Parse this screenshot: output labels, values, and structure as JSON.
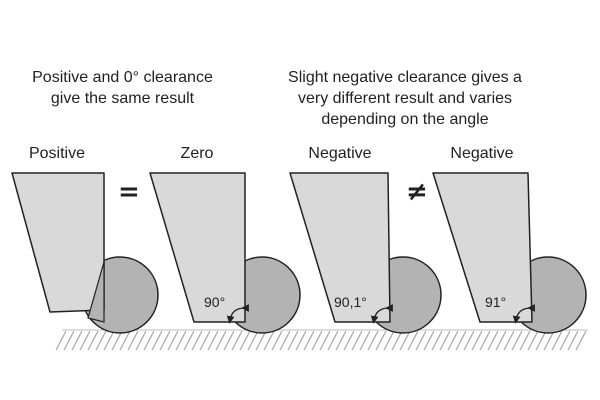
{
  "captions": {
    "left_line1": "Positive and 0° clearance",
    "left_line2": "give the same result",
    "right_line1": "Slight negative clearance gives a",
    "right_line2": "very different result and varies",
    "right_line3": "depending on the angle"
  },
  "panels": [
    {
      "label": "Positive",
      "angle": ""
    },
    {
      "label": "Zero",
      "angle": "90°"
    },
    {
      "label": "Negative",
      "angle": "90,1°"
    },
    {
      "label": "Negative",
      "angle": "91°"
    }
  ],
  "symbols": {
    "equals": "=",
    "not_equals": "≠"
  },
  "colors": {
    "tool": "#d9d9d9",
    "wheel": "#b3b3b3",
    "stroke": "#222222"
  }
}
